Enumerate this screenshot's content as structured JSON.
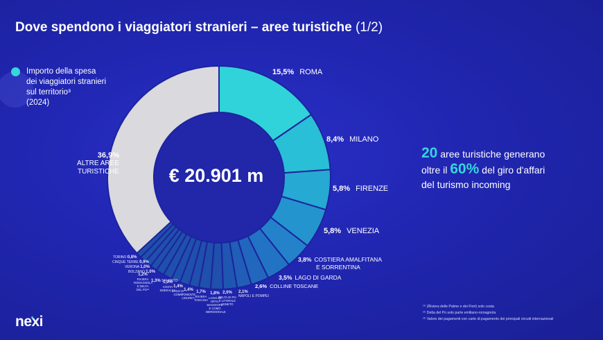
{
  "title": "Dove spendono i viaggiatori stranieri – aree turistiche",
  "title_suffix": "(1/2)",
  "intro_lines": [
    "Importo della spesa",
    "dei viaggiatori stranieri",
    "sul territorio³",
    "(2024)"
  ],
  "center_value": "€ 20.901 m",
  "headline": {
    "number_20": "20",
    "line1": " aree turistiche generano",
    "oltre_il": "oltre il ",
    "number_60": "60%",
    "line2_end": " del giro d'affari",
    "line3": "del turismo incoming"
  },
  "footnotes": [
    "⁽¹⁾ (Riviera delle Palme e dei Fiori) solo costa",
    "⁽²⁾ Delta del Po solo parte emiliano-romagnola",
    "⁽³⁾ Valore dei pagamenti con carte di pagamento dei principali circuiti internazionali"
  ],
  "logo": "nexi",
  "colors": {
    "accent": "#36d6dc",
    "background": "#2026b0",
    "other_slice": "#d9d9de"
  },
  "chart_data": {
    "type": "pie",
    "title": "",
    "categories": [
      "ROMA",
      "MILANO",
      "FIRENZE",
      "VENEZIA",
      "COSTIERA AMALFITANA E SORRENTINA",
      "LAGO DI GARDA",
      "COLLINE TOSCANE",
      "NAPOLI E POMPEI",
      "DELTA DI PO E LITORALE VENETO",
      "LAGO DI ORTA, MAGGIORE E COMO",
      "RIVIERA TOSCANA",
      "PONENTE LIGURE",
      "LAGO DI COMO",
      "COSTA SMERALDA",
      "SALENTO",
      "RIVIERA ROMAGNOLA",
      "BOLZANO",
      "VERONA",
      "CINQUE TERRE",
      "TORINO",
      "ALTRE AREE TURISTICHE"
    ],
    "values": [
      15.5,
      8.4,
      5.8,
      5.8,
      3.8,
      3.5,
      2.6,
      2.1,
      2.0,
      1.8,
      1.7,
      1.4,
      1.4,
      1.3,
      1.3,
      1.2,
      1.0,
      1.0,
      0.9,
      0.8,
      36.9
    ],
    "value_labels": [
      "15,5%",
      "8,4%",
      "5,8%",
      "5,8%",
      "3,8%",
      "3,5%",
      "2,6%",
      "2,1%",
      "2,0%",
      "1,8%",
      "1,7%",
      "1,4%",
      "1,4%",
      "1,3%",
      "1,3%",
      "1,2%",
      "1,0%",
      "1,0%",
      "0,9%",
      "0,8%",
      "36,9%"
    ],
    "label_lines": {
      "altre": [
        "ALTRE AREE",
        "TURISTICHE"
      ],
      "costiera": [
        "COSTIERA AMALFITANA",
        "E SORRENTINA"
      ],
      "delta": [
        "DELTA DI PO",
        "E LITORALE",
        "VENETO"
      ],
      "orta": [
        "LAGHI DI",
        "ORTA, MAGGIORE",
        "E COMO",
        "MERIDIONALE"
      ],
      "riviera_toscana": [
        "RIVIERA",
        "TOSCANA"
      ],
      "ponente": [
        "PONENTE",
        "LIGURE⁽¹⁾"
      ],
      "como": [
        "LAGO DI",
        "COMO"
      ],
      "smeralda": [
        "COSTA",
        "SMERALDA"
      ],
      "romagnola": [
        "RIVIERA",
        "ROMAGNOLA",
        "E DELTA",
        "DEL PO⁽²⁾"
      ]
    },
    "colors": {
      "roma": "#2fd3d9",
      "blues": [
        "#29bfd6",
        "#26a9d3",
        "#2494ce",
        "#2382c9",
        "#2273c3",
        "#2167bd",
        "#205eb7",
        "#1f56b1",
        "#1f50ab"
      ],
      "other": "#d9d9de"
    },
    "legend": "none"
  }
}
